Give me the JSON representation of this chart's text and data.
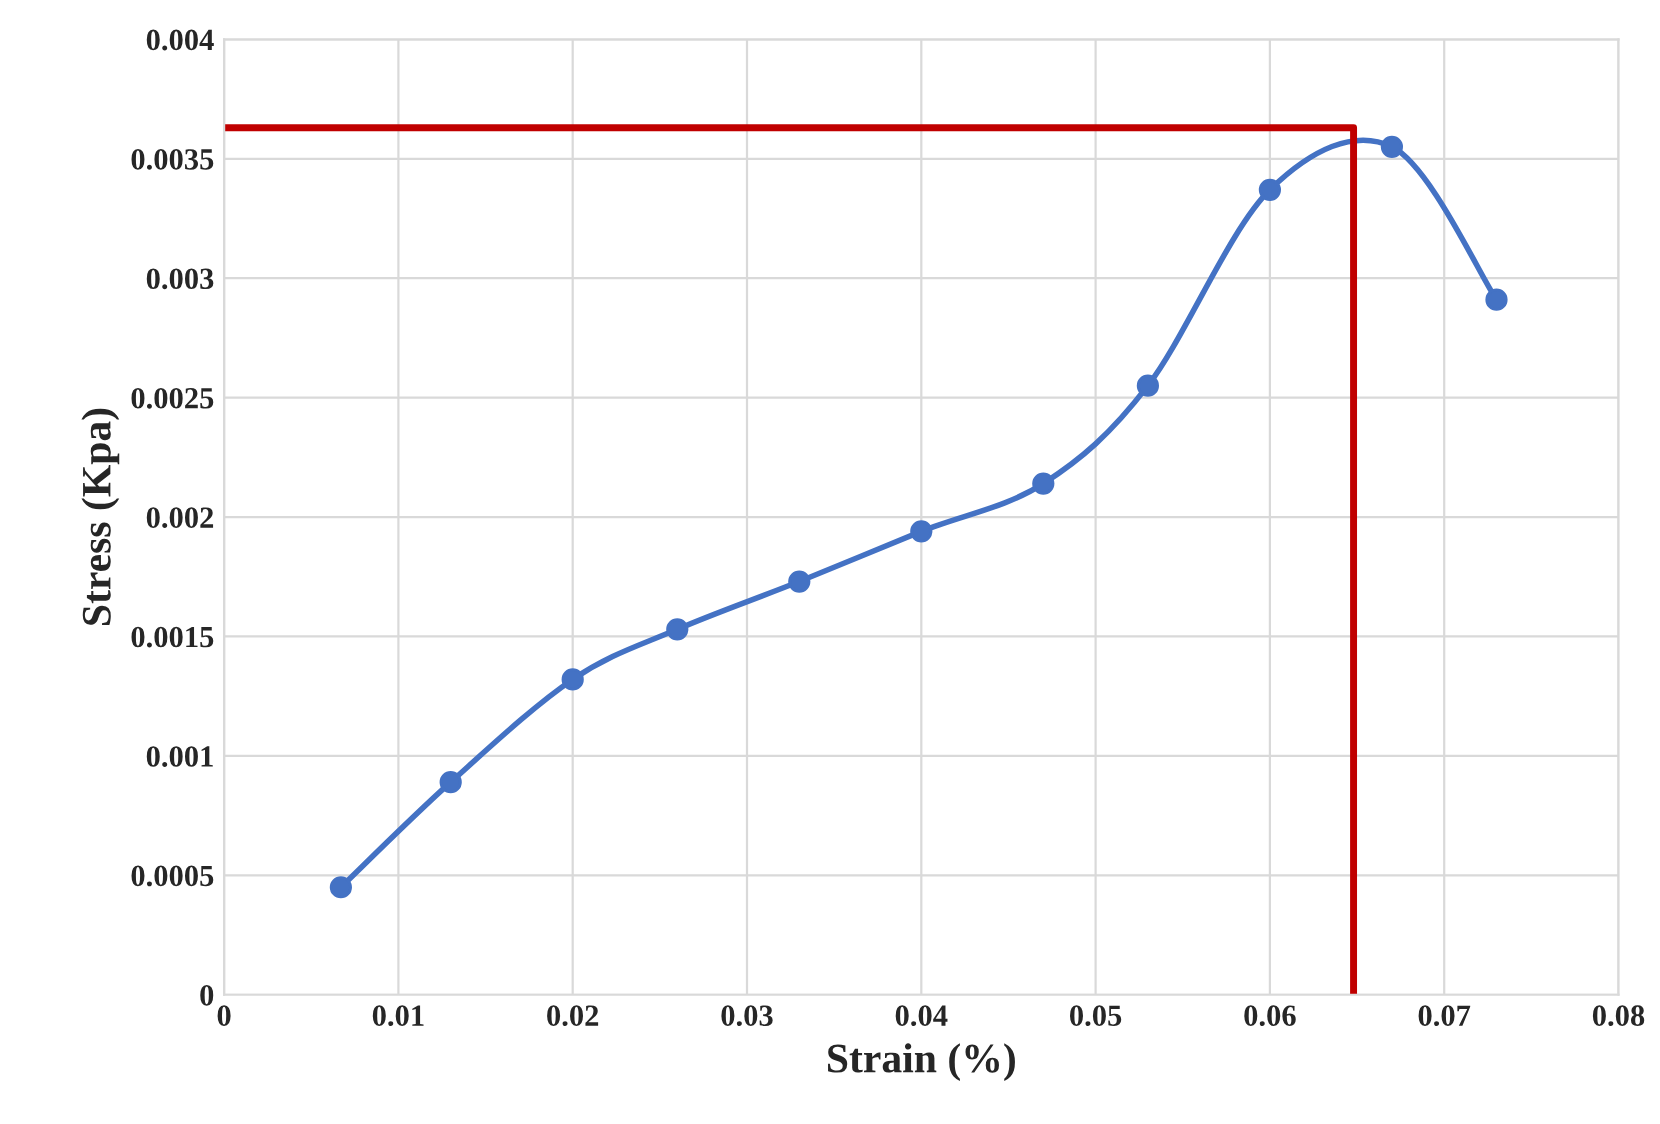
{
  "chart_data": {
    "type": "line",
    "xlabel": "Strain (%)",
    "ylabel": "Stress (Kpa)",
    "xlim": [
      0,
      0.08
    ],
    "xticks": [
      0,
      0.01,
      0.02,
      0.03,
      0.04,
      0.05,
      0.06,
      0.07,
      0.08
    ],
    "ylim": [
      0,
      0.004
    ],
    "yticks": [
      0,
      0.0005,
      0.001,
      0.0015,
      0.002,
      0.0025,
      0.003,
      0.0035,
      0.004
    ],
    "grid": true,
    "marker": "circle",
    "line_style": "solid",
    "series": [
      {
        "color": "#4472c4",
        "x": [
          0.0067,
          0.013,
          0.02,
          0.026,
          0.033,
          0.04,
          0.047,
          0.053,
          0.06,
          0.067,
          0.073
        ],
        "values": [
          0.00045,
          0.00089,
          0.00132,
          0.00153,
          0.00173,
          0.00194,
          0.00214,
          0.00255,
          0.00337,
          0.00355,
          0.00291
        ]
      },
      {
        "color": "#c00000",
        "marker": "none",
        "x": [
          0,
          0.0648,
          0.0648
        ],
        "values": [
          0.00363,
          0.00363,
          0
        ]
      }
    ]
  }
}
